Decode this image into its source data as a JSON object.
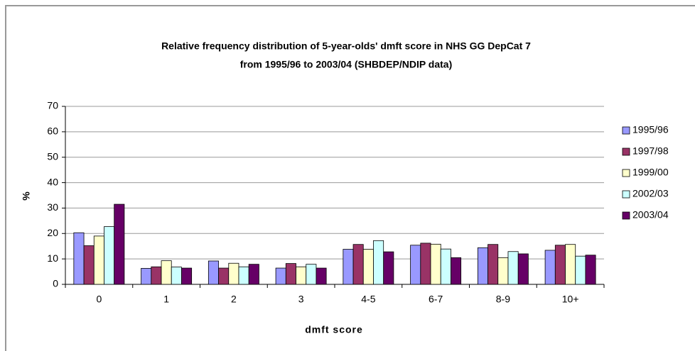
{
  "chart_data": {
    "type": "bar",
    "title": [
      "Relative frequency distribution of 5-year-olds' dmft score in NHS GG DepCat 7",
      "from 1995/96 to 2003/04 (SHBDEP/NDIP data)"
    ],
    "x_label": "dmft score",
    "y_label": "%",
    "categories": [
      "0",
      "1",
      "2",
      "3",
      "4-5",
      "6-7",
      "8-9",
      "10+"
    ],
    "series": [
      {
        "name": "1995/96",
        "color": "#9999ff",
        "values": [
          20.3,
          6.3,
          9.2,
          6.4,
          13.8,
          15.4,
          14.4,
          13.4
        ]
      },
      {
        "name": "1997/98",
        "color": "#993366",
        "values": [
          15.2,
          6.9,
          6.4,
          8.2,
          15.7,
          16.2,
          15.7,
          15.4
        ]
      },
      {
        "name": "1999/00",
        "color": "#ffffcc",
        "values": [
          19.0,
          9.3,
          8.3,
          6.9,
          13.8,
          15.8,
          10.5,
          15.7
        ]
      },
      {
        "name": "2002/03",
        "color": "#ccffff",
        "values": [
          22.7,
          6.8,
          6.9,
          7.9,
          17.2,
          13.9,
          12.9,
          11.1
        ]
      },
      {
        "name": "2003/04",
        "color": "#660066",
        "values": [
          31.5,
          6.4,
          7.9,
          6.4,
          12.8,
          10.5,
          12.0,
          11.5
        ]
      }
    ],
    "ylim": [
      0,
      70
    ],
    "yticks": [
      0,
      10,
      20,
      30,
      40,
      50,
      60,
      70
    ],
    "grid": true,
    "legend": "right"
  }
}
